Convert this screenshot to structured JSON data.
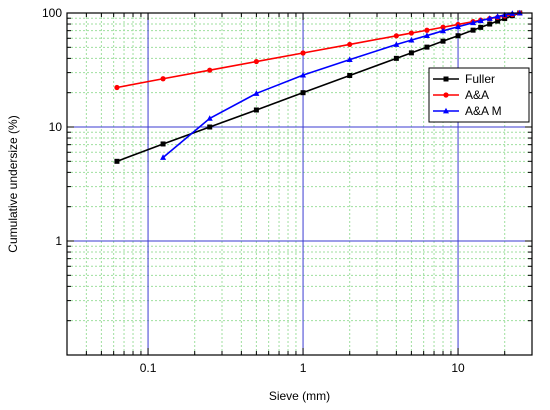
{
  "chart_data": {
    "type": "line",
    "title": "",
    "xlabel": "Sieve (mm)",
    "ylabel": "Cumulative undersize (%)",
    "x_scale": "log",
    "y_scale": "log",
    "xlim": [
      0.03,
      30
    ],
    "ylim": [
      0.1,
      100
    ],
    "x_ticks": [
      0.1,
      1,
      10
    ],
    "x_tick_labels": [
      "0.1",
      "1",
      "10"
    ],
    "y_ticks": [
      1,
      10,
      100
    ],
    "y_tick_labels": [
      "1",
      "10",
      "100"
    ],
    "grid": {
      "major": true,
      "minor": true,
      "major_color": "#3b3bd1",
      "minor_color": "#9fdf9f"
    },
    "legend_position": "right",
    "series": [
      {
        "name": "Fuller",
        "color": "#000000",
        "marker": "square",
        "x": [
          0.063,
          0.125,
          0.25,
          0.5,
          1,
          2,
          4,
          5,
          6.3,
          8,
          10,
          12.5,
          14,
          16,
          18,
          20,
          22.4,
          25
        ],
        "y": [
          5.0,
          7.1,
          10.0,
          14.1,
          20.0,
          28.3,
          40.0,
          44.7,
          50.2,
          56.6,
          63.2,
          70.7,
          74.8,
          80.0,
          84.9,
          89.4,
          94.7,
          100
        ]
      },
      {
        "name": "A&A",
        "color": "#ff0000",
        "marker": "circle",
        "x": [
          0.063,
          0.125,
          0.25,
          0.5,
          1,
          2,
          4,
          5,
          6.3,
          8,
          10,
          12.5,
          14,
          16,
          18,
          20,
          22.4,
          25
        ],
        "y": [
          22.2,
          26.5,
          31.5,
          37.5,
          44.6,
          53.0,
          63.1,
          66.7,
          70.6,
          75.0,
          79.4,
          84.0,
          86.6,
          89.3,
          91.8,
          94.1,
          96.9,
          100
        ]
      },
      {
        "name": "A&A M",
        "color": "#0000ff",
        "marker": "triangle",
        "x": [
          0.125,
          0.25,
          0.5,
          1,
          2,
          4,
          5,
          6.3,
          8,
          10,
          12.5,
          14,
          16,
          18,
          20,
          22.4,
          25
        ],
        "y": [
          5.4,
          11.9,
          19.7,
          28.5,
          39.0,
          52.9,
          57.8,
          63.4,
          69.8,
          75.7,
          82.1,
          85.6,
          89.5,
          93.2,
          96.3,
          99.0,
          100
        ]
      }
    ]
  }
}
